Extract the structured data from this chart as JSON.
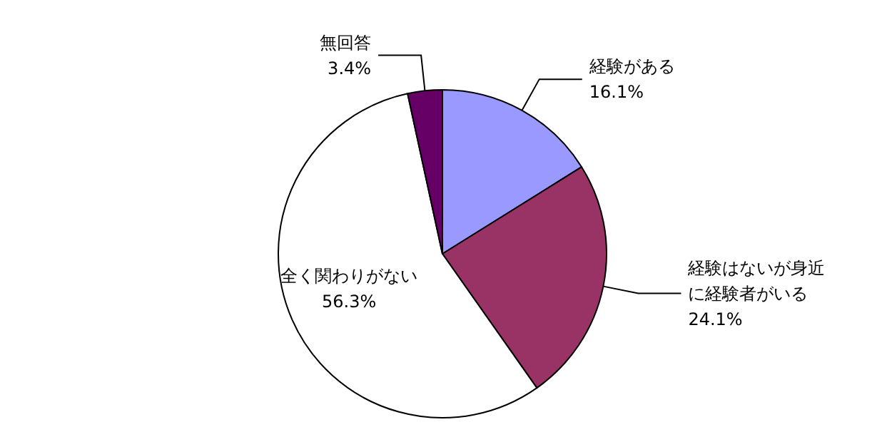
{
  "chart_data": {
    "type": "pie",
    "categories": [
      "経験がある",
      "経験はないが身近に経験者がいる",
      "全く関わりがない",
      "無回答"
    ],
    "values": [
      16.1,
      24.1,
      56.3,
      3.4
    ],
    "value_labels": [
      "16.1%",
      "24.1%",
      "56.3%",
      "3.4%"
    ],
    "colors": [
      "#9999ff",
      "#993366",
      "#ffffff",
      "#660066"
    ]
  }
}
